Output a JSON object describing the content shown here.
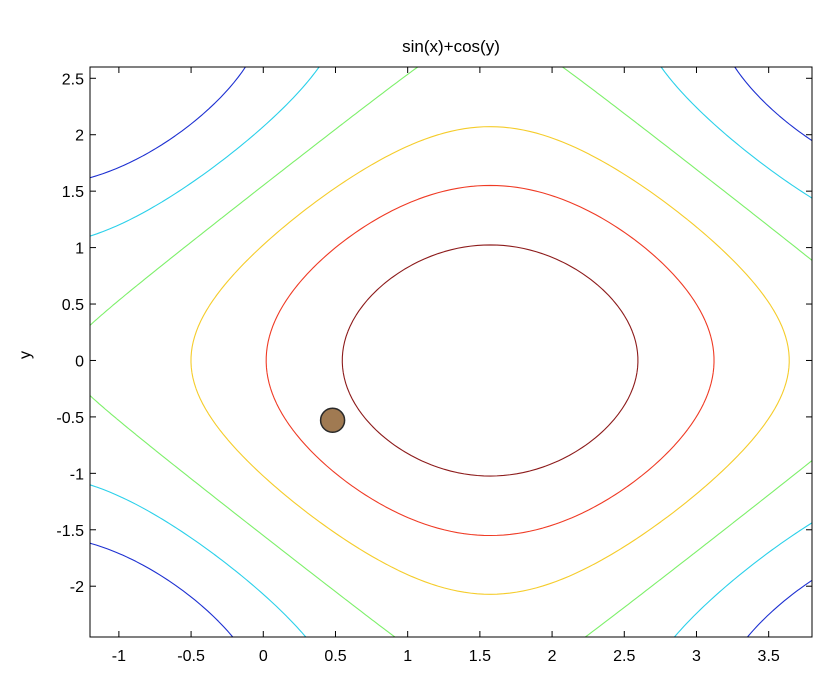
{
  "chart_data": {
    "type": "contour",
    "title": "sin(x)+cos(y)",
    "xlabel": "",
    "ylabel": "y",
    "function": "sin(x)+cos(y)",
    "xlim": [
      -1.2,
      3.8
    ],
    "ylim": [
      -2.45,
      2.6
    ],
    "xticks": [
      -1,
      -0.5,
      0,
      0.5,
      1,
      1.5,
      2,
      2.5,
      3,
      3.5
    ],
    "xtick_labels": [
      "-1",
      "-0.5",
      "0",
      "0.5",
      "1",
      "1.5",
      "2",
      "2.5",
      "3",
      "3.5"
    ],
    "yticks": [
      -2,
      -1.5,
      -1,
      -0.5,
      0,
      0.5,
      1,
      1.5,
      2,
      2.5
    ],
    "ytick_labels": [
      "-2",
      "-1.5",
      "-1",
      "-0.5",
      "0",
      "0.5",
      "1",
      "1.5",
      "2",
      "2.5"
    ],
    "grid": false,
    "levels": [
      {
        "value": -0.98,
        "color": "#1c2fd1"
      },
      {
        "value": -0.48,
        "color": "#2ad0ea"
      },
      {
        "value": 0.02,
        "color": "#7df06a"
      },
      {
        "value": 0.52,
        "color": "#f5cc2a"
      },
      {
        "value": 1.02,
        "color": "#ef3a24"
      },
      {
        "value": 1.52,
        "color": "#8c1a1a"
      }
    ],
    "marker": {
      "x": 0.48,
      "y": -0.53,
      "color": "#a07a52",
      "edge": "#2a2a2a"
    }
  }
}
